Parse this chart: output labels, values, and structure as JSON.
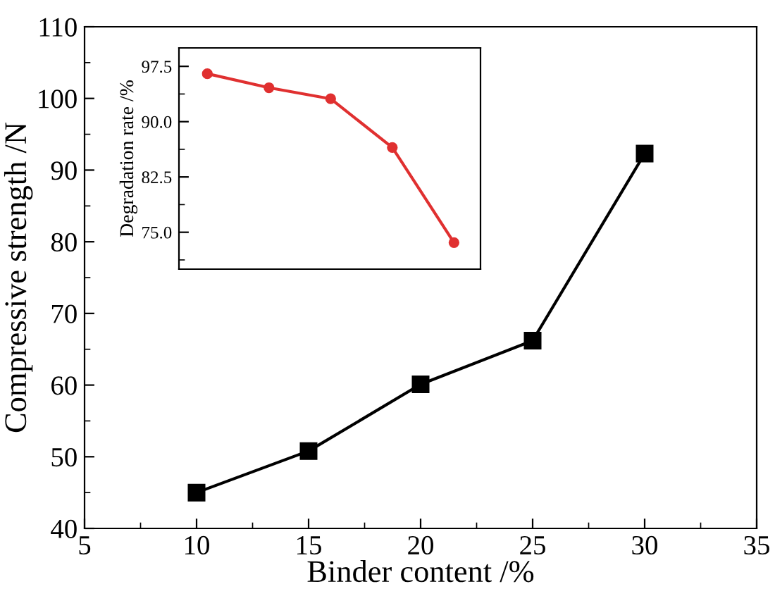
{
  "chart_data": [
    {
      "type": "line",
      "xlabel": "Binder content /%",
      "ylabel": "Compressive strength /N",
      "x": [
        10,
        15,
        20,
        25,
        30
      ],
      "series": [
        {
          "color": "#000000",
          "values": [
            45,
            50.8,
            60.1,
            66.2,
            92.3
          ]
        }
      ],
      "marker": "square",
      "line_style": "solid",
      "xlim": [
        5,
        35
      ],
      "xticks": [
        5,
        10,
        15,
        20,
        25,
        30,
        35
      ],
      "ylim": [
        40,
        110
      ],
      "yticks": [
        40,
        50,
        60,
        70,
        80,
        90,
        100,
        110
      ],
      "grid": false,
      "legend": false
    },
    {
      "type": "line",
      "ylabel": "Degradation rate /%",
      "categories": [
        null,
        null,
        null,
        null,
        null
      ],
      "series": [
        {
          "color": "#e03030",
          "values": [
            96.5,
            94.6,
            93.1,
            86.5,
            73.6
          ]
        }
      ],
      "marker": "circle",
      "line_style": "solid",
      "ylim": [
        70,
        100
      ],
      "yticks": [
        {
          "value": 75,
          "label": "75.0"
        },
        {
          "value": 82.5,
          "label": "82.5"
        },
        {
          "value": 90,
          "label": "90.0"
        },
        {
          "value": 97.5,
          "label": "97.5"
        }
      ],
      "tick_labels": "y",
      "grid": false,
      "legend": false
    }
  ]
}
